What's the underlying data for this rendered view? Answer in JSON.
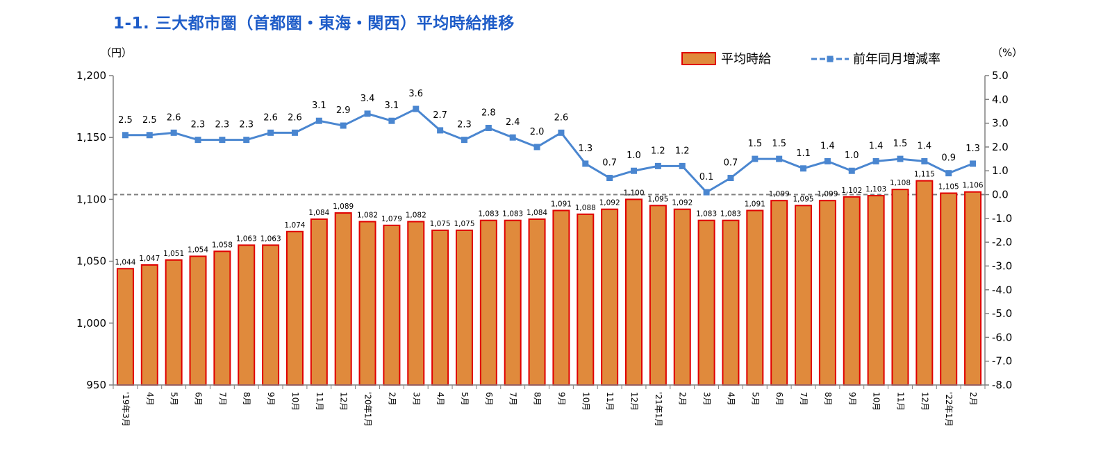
{
  "title": "1-1. 三大都市圏（首都圏・東海・関西）平均時給推移",
  "chart_data": {
    "type": "bar+line",
    "left_axis_unit": "（円）",
    "right_axis_unit": "（%）",
    "left_ylim": [
      950,
      1200
    ],
    "left_ticks": [
      "950",
      "1,000",
      "1,050",
      "1,100",
      "1,150",
      "1,200"
    ],
    "right_ylim": [
      -8.0,
      5.0
    ],
    "right_ticks": [
      "5.0",
      "4.0",
      "3.0",
      "2.0",
      "1.0",
      "0.0",
      "-1.0",
      "-2.0",
      "-3.0",
      "-4.0",
      "-5.0",
      "-6.0",
      "-7.0",
      "-8.0"
    ],
    "categories": [
      "'19年3月",
      "4月",
      "5月",
      "6月",
      "7月",
      "8月",
      "9月",
      "10月",
      "11月",
      "12月",
      "'20年1月",
      "2月",
      "3月",
      "4月",
      "5月",
      "6月",
      "7月",
      "8月",
      "9月",
      "10月",
      "11月",
      "12月",
      "'21年1月",
      "2月",
      "3月",
      "4月",
      "5月",
      "6月",
      "7月",
      "8月",
      "9月",
      "10月",
      "11月",
      "12月",
      "'22年1月",
      "2月"
    ],
    "series": [
      {
        "name": "平均時給",
        "kind": "bar",
        "axis": "left",
        "fill": "#e08a3c",
        "stroke": "#e00000",
        "values": [
          1044,
          1047,
          1051,
          1054,
          1058,
          1063,
          1063,
          1074,
          1084,
          1089,
          1082,
          1079,
          1082,
          1075,
          1075,
          1083,
          1083,
          1084,
          1091,
          1088,
          1092,
          1100,
          1095,
          1092,
          1083,
          1083,
          1091,
          1099,
          1095,
          1099,
          1102,
          1103,
          1108,
          1115,
          1105,
          1106
        ],
        "labels": [
          "1,044",
          "1,047",
          "1,051",
          "1,054",
          "1,058",
          "1,063",
          "1,063",
          "1,074",
          "1,084",
          "1,089",
          "1,082",
          "1,079",
          "1,082",
          "1,075",
          "1,075",
          "1,083",
          "1,083",
          "1,084",
          "1,091",
          "1,088",
          "1,092",
          "1,100",
          "1,095",
          "1,092",
          "1,083",
          "1,083",
          "1,091",
          "1,099",
          "1,095",
          "1,099",
          "1,102",
          "1,103",
          "1,108",
          "1,115",
          "1,105",
          "1,106"
        ]
      },
      {
        "name": "前年同月増減率",
        "kind": "line",
        "axis": "right",
        "color": "#4a86d0",
        "values": [
          2.5,
          2.5,
          2.6,
          2.3,
          2.3,
          2.3,
          2.6,
          2.6,
          3.1,
          2.9,
          3.4,
          3.1,
          3.6,
          2.7,
          2.3,
          2.8,
          2.4,
          2.0,
          2.6,
          1.3,
          0.7,
          1.0,
          1.2,
          1.2,
          0.1,
          0.7,
          1.5,
          1.5,
          1.1,
          1.4,
          1.0,
          1.4,
          1.5,
          1.4,
          0.9,
          1.3
        ],
        "labels": [
          "2.5",
          "2.5",
          "2.6",
          "2.3",
          "2.3",
          "2.3",
          "2.6",
          "2.6",
          "3.1",
          "2.9",
          "3.4",
          "3.1",
          "3.6",
          "2.7",
          "2.3",
          "2.8",
          "2.4",
          "2.0",
          "2.6",
          "1.3",
          "0.7",
          "1.0",
          "1.2",
          "1.2",
          "0.1",
          "0.7",
          "1.5",
          "1.5",
          "1.1",
          "1.4",
          "1.0",
          "1.4",
          "1.5",
          "1.4",
          "0.9",
          "1.3"
        ]
      }
    ],
    "zero_line": "dashed gray at 0.0 on right axis",
    "legend_position": "top-right"
  }
}
